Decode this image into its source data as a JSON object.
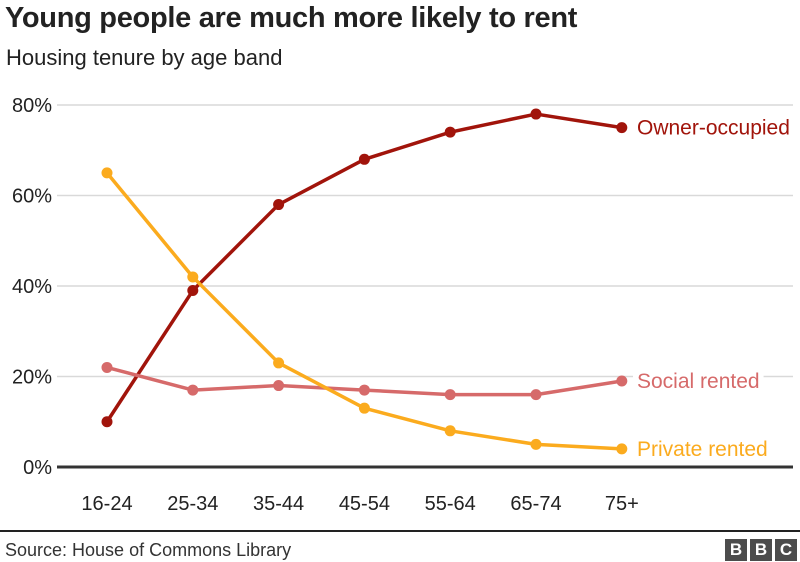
{
  "header": {
    "title": "Young people are much more likely to rent",
    "subtitle": "Housing tenure by age band"
  },
  "chart_data": {
    "type": "line",
    "categories": [
      "16-24",
      "25-34",
      "35-44",
      "45-54",
      "55-64",
      "65-74",
      "75+"
    ],
    "series": [
      {
        "name": "Owner-occupied",
        "color": "#a1140b",
        "values": [
          10,
          39,
          58,
          68,
          74,
          78,
          75
        ]
      },
      {
        "name": "Social rented",
        "color": "#d66a6a",
        "values": [
          22,
          17,
          18,
          17,
          16,
          16,
          19
        ]
      },
      {
        "name": "Private rented",
        "color": "#fbab1e",
        "values": [
          65,
          42,
          23,
          13,
          8,
          5,
          4
        ]
      }
    ],
    "title": "Young people are much more likely to rent",
    "subtitle": "Housing tenure by age band",
    "xlabel": "",
    "ylabel": "",
    "ylim": [
      0,
      80
    ],
    "yticks": [
      0,
      20,
      40,
      60,
      80
    ],
    "ytick_suffix": "%",
    "grid": true,
    "legend_position": "labels-at-line-end"
  },
  "footer": {
    "source": "Source: House of Commons Library",
    "logo_letters": [
      "B",
      "B",
      "C"
    ]
  },
  "colors": {
    "grid": "#d9d9d9",
    "axis": "#333333",
    "tick_text": "#222222",
    "label_bg": "#ffffff"
  }
}
